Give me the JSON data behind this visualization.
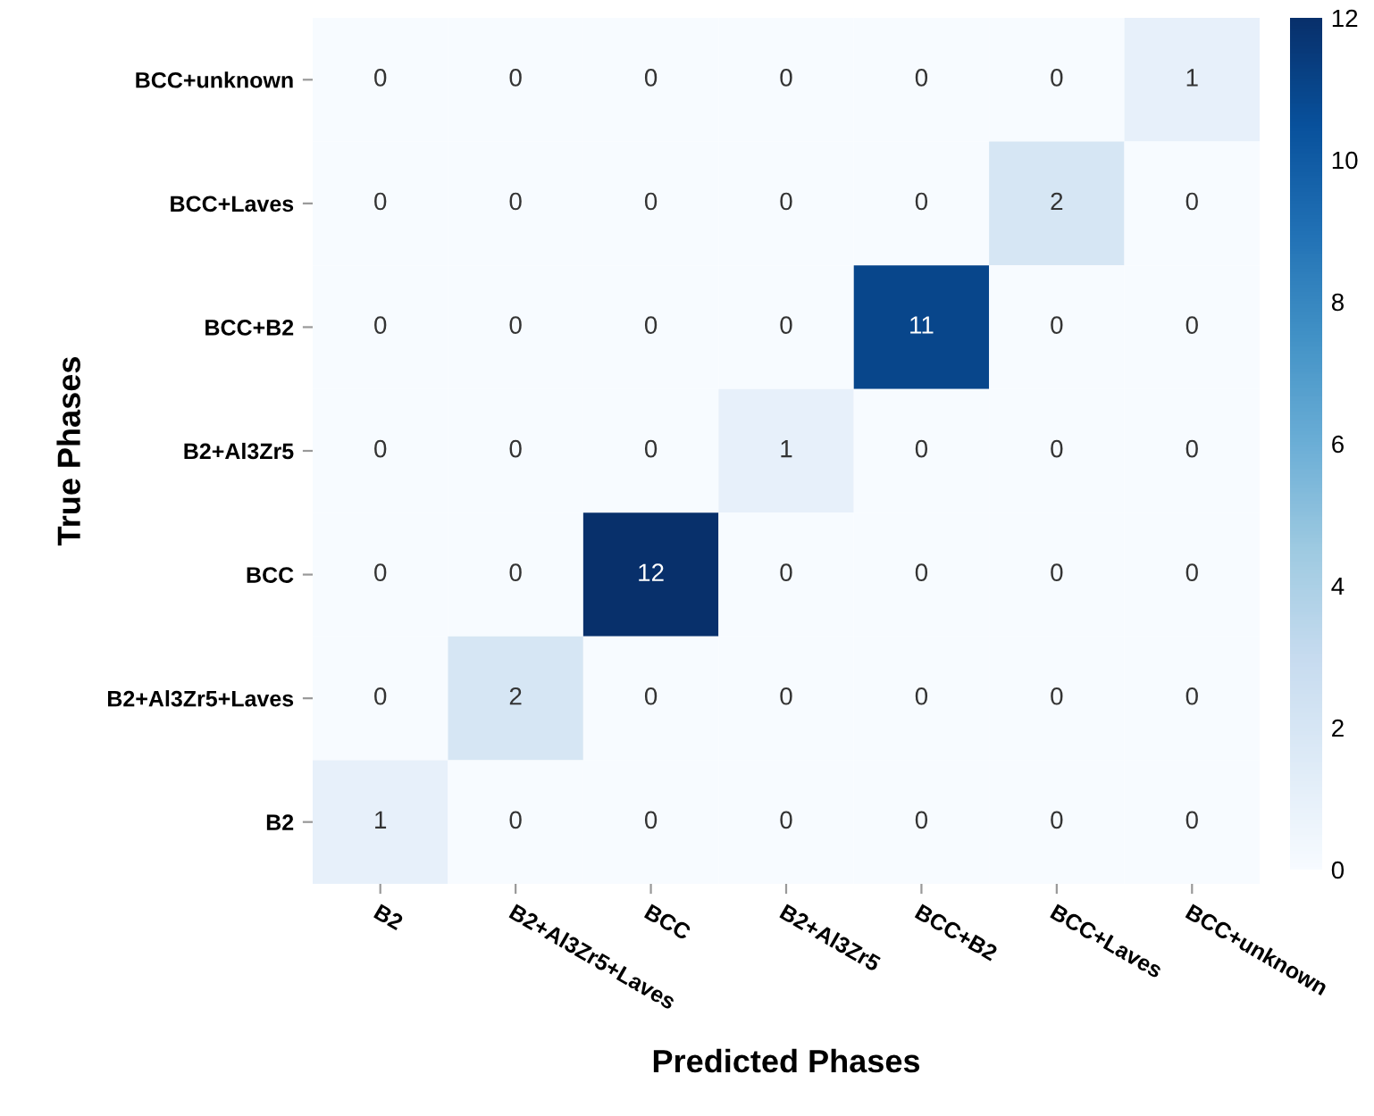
{
  "chart_data": {
    "type": "heatmap",
    "xlabel": "Predicted Phases",
    "ylabel": "True Phases",
    "categories": [
      "B2",
      "B2+Al3Zr5+Laves",
      "BCC",
      "B2+Al3Zr5",
      "BCC+B2",
      "BCC+Laves",
      "BCC+unknown"
    ],
    "y_categories": [
      "BCC+unknown",
      "BCC+Laves",
      "BCC+B2",
      "B2+Al3Zr5",
      "BCC",
      "B2+Al3Zr5+Laves",
      "B2"
    ],
    "cells": [
      [
        0,
        0,
        0,
        0,
        0,
        0,
        1
      ],
      [
        0,
        0,
        0,
        0,
        0,
        2,
        0
      ],
      [
        0,
        0,
        0,
        0,
        11,
        0,
        0
      ],
      [
        0,
        0,
        0,
        1,
        0,
        0,
        0
      ],
      [
        0,
        0,
        12,
        0,
        0,
        0,
        0
      ],
      [
        0,
        2,
        0,
        0,
        0,
        0,
        0
      ],
      [
        1,
        0,
        0,
        0,
        0,
        0,
        0
      ]
    ],
    "clim": [
      0,
      12
    ],
    "cticks": [
      0,
      2,
      4,
      6,
      8,
      10,
      12
    ],
    "data_labels": true
  }
}
